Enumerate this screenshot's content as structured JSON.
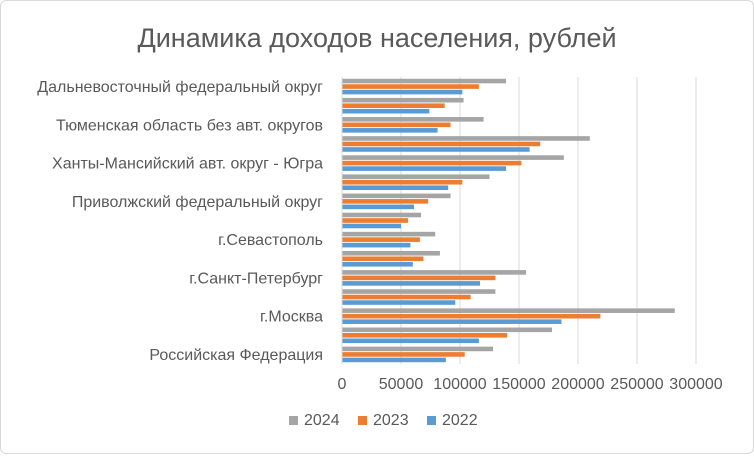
{
  "chart_data": {
    "type": "bar",
    "orientation": "horizontal",
    "title": "Динамика доходов населения, рублей",
    "xlabel": "",
    "ylabel": "",
    "xlim": [
      0,
      300000
    ],
    "x_ticks": [
      0,
      50000,
      100000,
      150000,
      200000,
      250000,
      300000
    ],
    "x_tick_labels": [
      "0",
      "50000",
      "100000",
      "150000",
      "200000",
      "250000",
      "300000"
    ],
    "grid": "vertical",
    "legend_position": "bottom",
    "categories": [
      "Российская Федерация",
      "",
      "г.Москва",
      "",
      "г.Санкт-Петербург",
      "",
      "г.Севастополь",
      "",
      "Приволжский федеральный округ",
      "",
      "Ханты-Мансийский  авт. округ - Югра",
      "",
      "Тюменская область без авт. округов",
      "",
      "Дальневосточный федеральный округ"
    ],
    "series": [
      {
        "name": "2024",
        "color": "#a5a5a5",
        "values": [
          128000,
          178000,
          282000,
          130000,
          156000,
          83000,
          79000,
          67000,
          92000,
          125000,
          188000,
          210000,
          120000,
          103000,
          139000
        ]
      },
      {
        "name": "2023",
        "color": "#ed7d31",
        "values": [
          104000,
          140000,
          219000,
          109000,
          130000,
          69000,
          66000,
          56000,
          73000,
          102000,
          152000,
          168000,
          92000,
          87000,
          116000
        ]
      },
      {
        "name": "2022",
        "color": "#5b9bd5",
        "values": [
          88000,
          116000,
          186000,
          96000,
          117000,
          60000,
          58000,
          50000,
          61000,
          90000,
          139000,
          159000,
          81000,
          74000,
          102000
        ]
      }
    ]
  }
}
